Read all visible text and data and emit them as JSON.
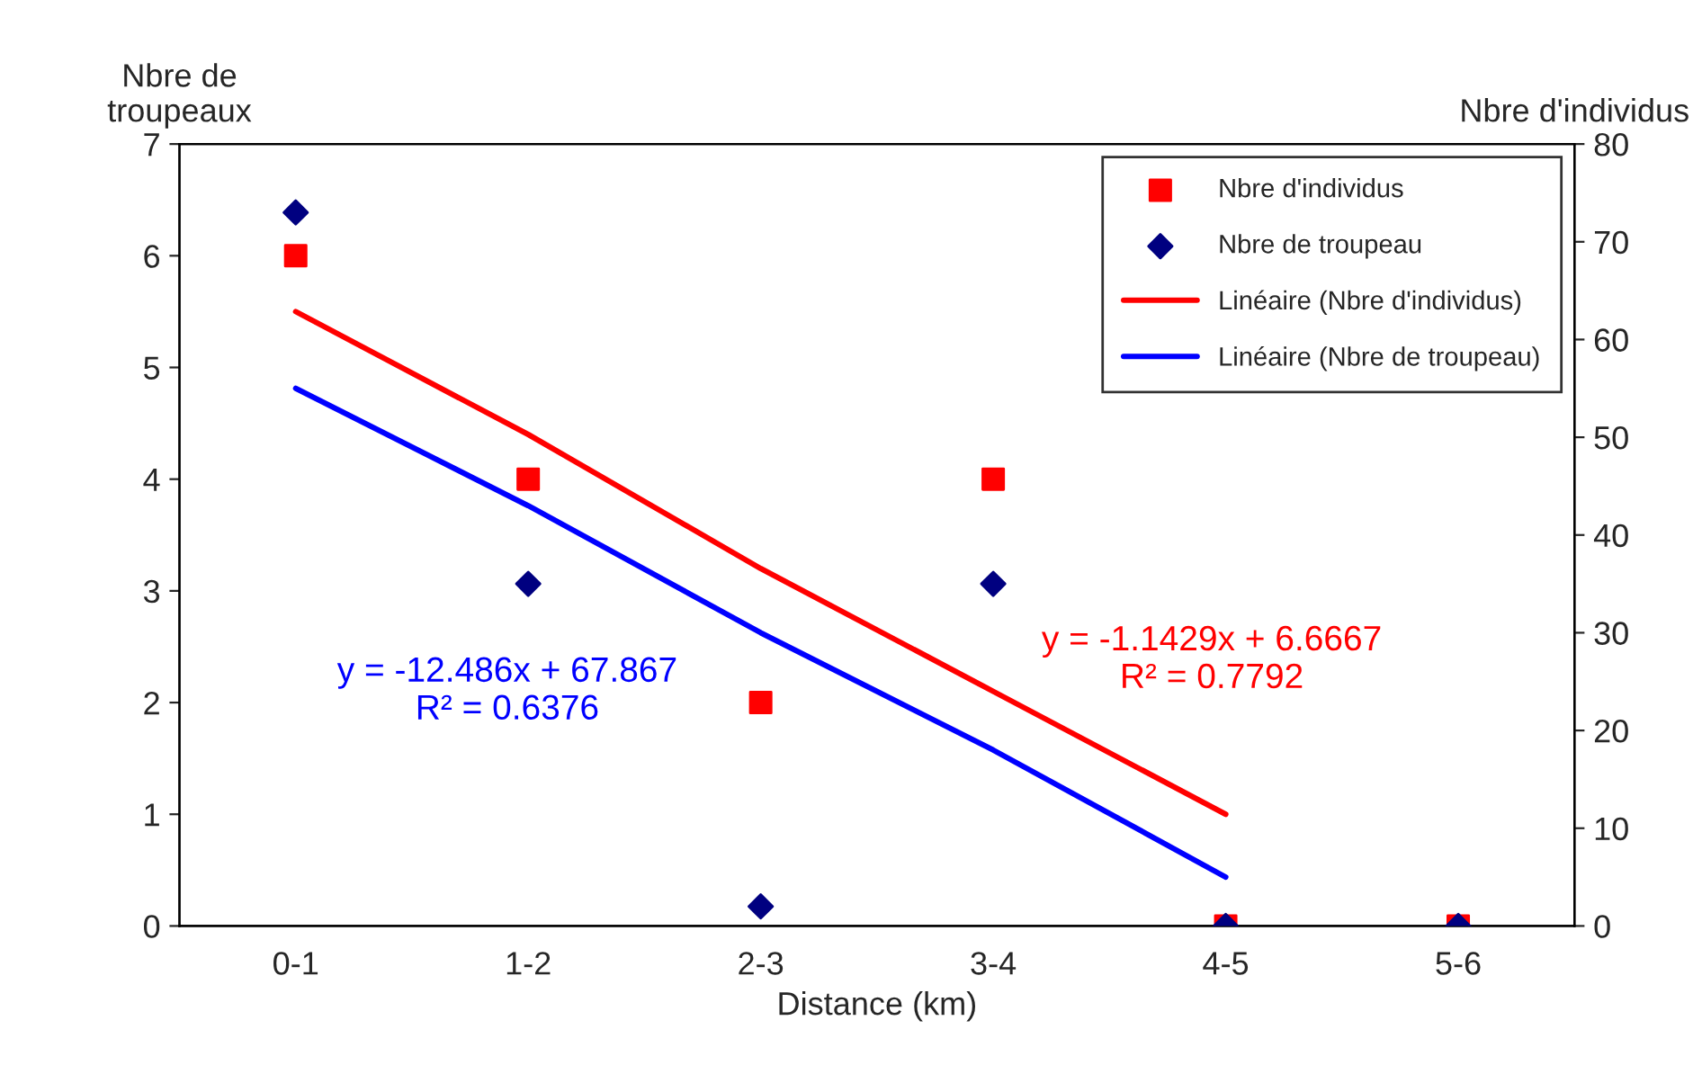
{
  "chart_data": {
    "type": "scatter",
    "xlabel": "Distance (km)",
    "ylabel": "Nbre de\ntroupeaux",
    "y2label": "Nbre d'individus",
    "categories": [
      "0-1",
      "1-2",
      "2-3",
      "3-4",
      "4-5",
      "5-6"
    ],
    "ylim": [
      0,
      7
    ],
    "yticks": [
      0,
      1,
      2,
      3,
      4,
      5,
      6,
      7
    ],
    "y2lim": [
      0,
      80
    ],
    "y2ticks": [
      0,
      10,
      20,
      30,
      40,
      50,
      60,
      70,
      80
    ],
    "series": [
      {
        "name": "Nbre d'individus",
        "marker": "square",
        "color": "#ff0000",
        "values": [
          6,
          4,
          2,
          4,
          0,
          0
        ]
      },
      {
        "name": "Nbre de troupeau",
        "marker": "diamond",
        "color": "#000080",
        "axis": "y2",
        "values": [
          73,
          35,
          2,
          35,
          0,
          0
        ]
      },
      {
        "name": "Linéaire (Nbre d'individus)",
        "type": "line",
        "color": "#ff0000",
        "line_style": "solid",
        "values": [
          5.5,
          4.4,
          3.2,
          2.1,
          1.0,
          null
        ]
      },
      {
        "name": "Linéaire (Nbre de troupeau)",
        "type": "line",
        "color": "#0000ff",
        "line_style": "solid",
        "axis": "y2",
        "values": [
          55,
          43,
          30,
          18,
          5,
          null
        ]
      }
    ],
    "annotations": [
      "y = -1.1429x + 6.6667\nR² = 0.7792",
      "y = -12.486x + 67.867\nR² = 0.6376"
    ],
    "legend": "top right",
    "grid": false
  }
}
